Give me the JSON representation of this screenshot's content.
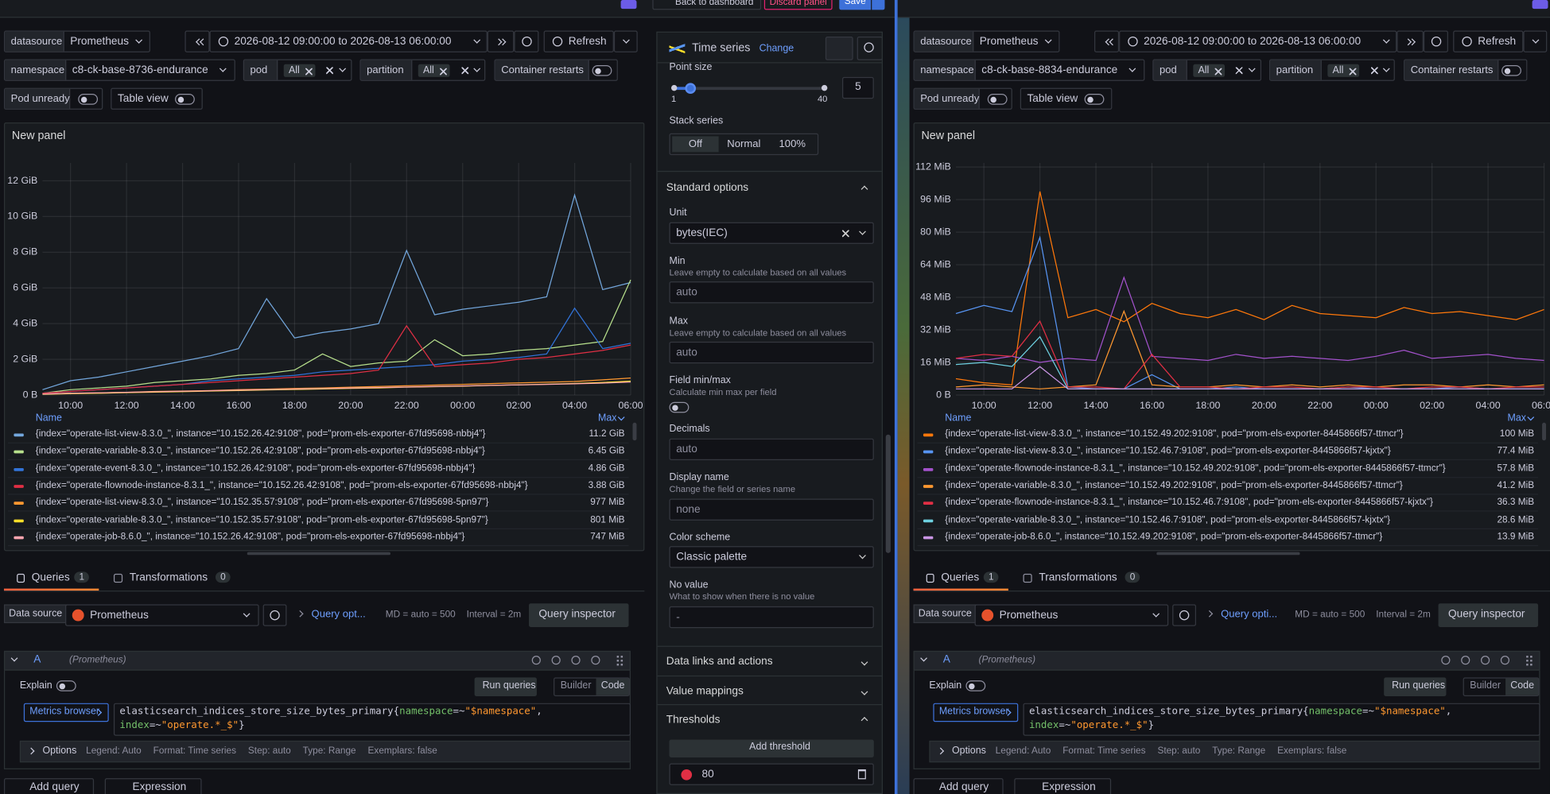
{
  "toolbar": {
    "back": "Back to dashboard",
    "discard": "Discard panel",
    "save": "Save"
  },
  "options_pane": {
    "viz": "Time series",
    "change": "Change",
    "point_size": "Point size",
    "point_size_min": 1,
    "point_size_max": 40,
    "point_size_value": 5,
    "stack_series": "Stack series",
    "stack_modes": [
      "Off",
      "Normal",
      "100%"
    ],
    "standard_options": "Standard options",
    "unit_label": "Unit",
    "unit": "bytes(IEC)",
    "min_label": "Min",
    "min_desc": "Leave empty to calculate based on all values",
    "min_placeholder": "auto",
    "max_label": "Max",
    "max_desc": "Leave empty to calculate based on all values",
    "max_placeholder": "auto",
    "field_minmax": "Field min/max",
    "field_minmax_desc": "Calculate min max per field",
    "decimals": "Decimals",
    "decimals_placeholder": "auto",
    "display_name": "Display name",
    "display_name_desc": "Change the field or series name",
    "display_name_placeholder": "none",
    "color_scheme": "Color scheme",
    "color_scheme_value": "Classic palette",
    "no_value": "No value",
    "no_value_desc": "What to show when there is no value",
    "no_value_placeholder": "-",
    "data_links": "Data links and actions",
    "value_mappings": "Value mappings",
    "thresholds": "Thresholds",
    "add_threshold": "Add threshold",
    "threshold_value": 80
  },
  "left": {
    "datasource_label": "datasource",
    "datasource": "Prometheus",
    "time_range": "2026-08-12 09:00:00 to 2026-08-13 06:00:00",
    "refresh": "Refresh",
    "namespace_label": "namespace",
    "namespace": "c8-ck-base-8736-endurance",
    "pod_label": "pod",
    "pod": "All",
    "partition_label": "partition",
    "partition": "All",
    "container_restarts": "Container restarts",
    "pod_unready": "Pod unready",
    "table_view": "Table view",
    "panel_title": "New panel",
    "chart": {
      "type": "line",
      "xlim": [
        "2026-08-12 09:00",
        "2026-08-13 06:00"
      ],
      "xticks": [
        {
          "value": "2026-08-12 10:00",
          "label": "10:00"
        },
        {
          "value": "2026-08-12 12:00",
          "label": "12:00"
        },
        {
          "value": "2026-08-12 14:00",
          "label": "14:00"
        },
        {
          "value": "2026-08-12 16:00",
          "label": "16:00"
        },
        {
          "value": "2026-08-12 18:00",
          "label": "18:00"
        },
        {
          "value": "2026-08-12 20:00",
          "label": "20:00"
        },
        {
          "value": "2026-08-12 22:00",
          "label": "22:00"
        },
        {
          "value": "2026-08-13 00:00",
          "label": "00:00"
        },
        {
          "value": "2026-08-13 02:00",
          "label": "02:00"
        },
        {
          "value": "2026-08-13 04:00",
          "label": "04:00"
        },
        {
          "value": "2026-08-13 06:00",
          "label": "06:00"
        }
      ],
      "ylim": [
        0,
        13
      ],
      "yticks": [
        {
          "value": 0,
          "label": "0 B"
        },
        {
          "value": 2,
          "label": "2 GiB"
        },
        {
          "value": 4,
          "label": "4 GiB"
        },
        {
          "value": 6,
          "label": "6 GiB"
        },
        {
          "value": 8,
          "label": "8 GiB"
        },
        {
          "value": 10,
          "label": "10 GiB"
        },
        {
          "value": 12,
          "label": "12 GiB"
        }
      ],
      "grid": true,
      "x": [
        "2026-08-12 09:00",
        "2026-08-12 10:00",
        "2026-08-12 11:00",
        "2026-08-12 12:00",
        "2026-08-12 13:00",
        "2026-08-12 14:00",
        "2026-08-12 15:00",
        "2026-08-12 16:00",
        "2026-08-12 17:00",
        "2026-08-12 18:00",
        "2026-08-12 19:00",
        "2026-08-12 20:00",
        "2026-08-12 21:00",
        "2026-08-12 22:00",
        "2026-08-12 23:00",
        "2026-08-13 00:00",
        "2026-08-13 01:00",
        "2026-08-13 02:00",
        "2026-08-13 03:00",
        "2026-08-13 04:00",
        "2026-08-13 05:00",
        "2026-08-13 06:00"
      ],
      "legend_name": "Name",
      "legend_max": "Max",
      "series": [
        {
          "name": "{index=\"operate-list-view-8.3.0_\", instance=\"10.152.26.42:9108\", pod=\"prom-els-exporter-67fd95698-nbbj4\"}",
          "max": "11.2 GiB",
          "color": "#73a7dd",
          "values": [
            0.3,
            0.8,
            1.0,
            1.3,
            1.6,
            1.9,
            2.2,
            2.6,
            5.4,
            3.2,
            3.5,
            3.7,
            4.0,
            8.1,
            4.5,
            4.8,
            5.0,
            5.2,
            5.5,
            11.2,
            5.9,
            6.3
          ]
        },
        {
          "name": "{index=\"operate-variable-8.3.0_\", instance=\"10.152.26.42:9108\", pod=\"prom-els-exporter-67fd95698-nbbj4\"}",
          "max": "6.45 GiB",
          "color": "#b7e08c",
          "values": [
            0.1,
            0.3,
            0.4,
            0.5,
            0.7,
            0.8,
            0.9,
            1.1,
            1.2,
            1.4,
            2.3,
            1.6,
            1.8,
            1.9,
            3.1,
            2.2,
            2.3,
            2.5,
            2.6,
            2.8,
            3.0,
            6.45
          ]
        },
        {
          "name": "{index=\"operate-event-8.3.0_\", instance=\"10.152.26.42:9108\", pod=\"prom-els-exporter-67fd95698-nbbj4\"}",
          "max": "4.86 GiB",
          "color": "#3274d9",
          "values": [
            0.1,
            0.2,
            0.3,
            0.4,
            0.5,
            0.6,
            0.8,
            0.9,
            1.0,
            1.1,
            1.3,
            1.4,
            1.5,
            1.6,
            1.7,
            1.9,
            2.0,
            2.1,
            2.3,
            4.86,
            2.6,
            2.9
          ]
        },
        {
          "name": "{index=\"operate-flownode-instance-8.3.1_\", instance=\"10.152.26.42:9108\", pod=\"prom-els-exporter-67fd95698-nbbj4\"}",
          "max": "3.88 GiB",
          "color": "#e02f44",
          "values": [
            0.1,
            0.2,
            0.3,
            0.4,
            0.5,
            0.6,
            0.7,
            0.8,
            0.9,
            1.0,
            1.1,
            1.2,
            1.4,
            3.88,
            1.6,
            1.7,
            1.8,
            2.0,
            2.1,
            2.3,
            2.5,
            2.8
          ]
        },
        {
          "name": "{index=\"operate-list-view-8.3.0_\", instance=\"10.152.35.57:9108\", pod=\"prom-els-exporter-67fd95698-5pn97\"}",
          "max": "977 MiB",
          "color": "#ff9830",
          "values": [
            0.05,
            0.1,
            0.12,
            0.15,
            0.2,
            0.22,
            0.25,
            0.3,
            0.33,
            0.37,
            0.4,
            0.44,
            0.48,
            0.52,
            0.56,
            0.6,
            0.64,
            0.68,
            0.72,
            0.76,
            0.85,
            0.95
          ]
        },
        {
          "name": "{index=\"operate-variable-8.3.0_\", instance=\"10.152.35.57:9108\", pod=\"prom-els-exporter-67fd95698-5pn97\"}",
          "max": "801 MiB",
          "color": "#fade2a",
          "values": [
            0.04,
            0.08,
            0.1,
            0.13,
            0.16,
            0.19,
            0.22,
            0.25,
            0.28,
            0.31,
            0.34,
            0.37,
            0.4,
            0.44,
            0.47,
            0.5,
            0.54,
            0.57,
            0.61,
            0.65,
            0.7,
            0.78
          ]
        },
        {
          "name": "{index=\"operate-job-8.6.0_\", instance=\"10.152.26.42:9108\", pod=\"prom-els-exporter-67fd95698-nbbj4\"}",
          "max": "747 MiB",
          "color": "#ffa6b0",
          "values": [
            0.05,
            0.1,
            0.12,
            0.15,
            0.18,
            0.21,
            0.24,
            0.27,
            0.3,
            0.33,
            0.36,
            0.39,
            0.42,
            0.45,
            0.48,
            0.51,
            0.54,
            0.57,
            0.6,
            0.63,
            0.67,
            0.73
          ]
        }
      ]
    },
    "queries_tab": "Queries",
    "queries_count": 1,
    "transformations_tab": "Transformations",
    "transformations_count": 0,
    "data_source_label": "Data source",
    "data_source": "Prometheus",
    "query_options": "Query opt...",
    "md": "MD = auto = 500",
    "interval": "Interval = 2m",
    "query_inspector": "Query inspector",
    "query_ref": "A",
    "query_ds": "(Prometheus)",
    "explain": "Explain",
    "run_queries": "Run queries",
    "builder": "Builder",
    "code": "Code",
    "metrics_browser": "Metrics browser",
    "query_line1": [
      "elasticsearch_indices_store_size_bytes_primary{",
      "namespace",
      "=~",
      "\"$namespace\"",
      ","
    ],
    "query_line2": [
      "index",
      "=~",
      "\"operate.*_$\"",
      "}"
    ],
    "options": "Options",
    "options_summary": [
      "Legend: Auto",
      "Format: Time series",
      "Step: auto",
      "Type: Range",
      "Exemplars: false"
    ],
    "add_query": "Add query",
    "expression": "Expression"
  },
  "right": {
    "datasource_label": "datasource",
    "datasource": "Prometheus",
    "time_range": "2026-08-12 09:00:00 to 2026-08-13 06:00:00",
    "refresh": "Refresh",
    "namespace_label": "namespace",
    "namespace": "c8-ck-base-8834-endurance",
    "pod_label": "pod",
    "pod": "All",
    "partition_label": "partition",
    "partition": "All",
    "container_restarts": "Container restarts",
    "pod_unready": "Pod unready",
    "table_view": "Table view",
    "panel_title": "New panel",
    "chart": {
      "type": "line",
      "xlim": [
        "2026-08-12 09:00",
        "2026-08-13 06:00"
      ],
      "xticks": [
        {
          "value": "2026-08-12 10:00",
          "label": "10:00"
        },
        {
          "value": "2026-08-12 12:00",
          "label": "12:00"
        },
        {
          "value": "2026-08-12 14:00",
          "label": "14:00"
        },
        {
          "value": "2026-08-12 16:00",
          "label": "16:00"
        },
        {
          "value": "2026-08-12 18:00",
          "label": "18:00"
        },
        {
          "value": "2026-08-12 20:00",
          "label": "20:00"
        },
        {
          "value": "2026-08-12 22:00",
          "label": "22:00"
        },
        {
          "value": "2026-08-13 00:00",
          "label": "00:00"
        },
        {
          "value": "2026-08-13 02:00",
          "label": "02:00"
        },
        {
          "value": "2026-08-13 04:00",
          "label": "04:00"
        },
        {
          "value": "2026-08-13 06:00",
          "label": "06:00"
        }
      ],
      "ylim": [
        0,
        114
      ],
      "yticks": [
        {
          "value": 0,
          "label": "0 B"
        },
        {
          "value": 16,
          "label": "16 MiB"
        },
        {
          "value": 32,
          "label": "32 MiB"
        },
        {
          "value": 48,
          "label": "48 MiB"
        },
        {
          "value": 64,
          "label": "64 MiB"
        },
        {
          "value": 80,
          "label": "80 MiB"
        },
        {
          "value": 96,
          "label": "96 MiB"
        },
        {
          "value": 112,
          "label": "112 MiB"
        }
      ],
      "grid": true,
      "x": [
        "2026-08-12 09:00",
        "2026-08-12 10:00",
        "2026-08-12 11:00",
        "2026-08-12 12:00",
        "2026-08-12 13:00",
        "2026-08-12 14:00",
        "2026-08-12 15:00",
        "2026-08-12 16:00",
        "2026-08-12 17:00",
        "2026-08-12 18:00",
        "2026-08-12 19:00",
        "2026-08-12 20:00",
        "2026-08-12 21:00",
        "2026-08-12 22:00",
        "2026-08-12 23:00",
        "2026-08-13 00:00",
        "2026-08-13 01:00",
        "2026-08-13 02:00",
        "2026-08-13 03:00",
        "2026-08-13 04:00",
        "2026-08-13 05:00",
        "2026-08-13 06:00"
      ],
      "legend_name": "Name",
      "legend_max": "Max",
      "series": [
        {
          "name": "{index=\"operate-list-view-8.3.0_\", instance=\"10.152.49.202:9108\", pod=\"prom-els-exporter-8445866f57-ttmcr\"}",
          "max": "100 MiB",
          "color": "#ff780a",
          "values": [
            8,
            6,
            5,
            100,
            38,
            42,
            36,
            45,
            40,
            38,
            42,
            37,
            44,
            40,
            39,
            38,
            43,
            40,
            41,
            39,
            37,
            42
          ]
        },
        {
          "name": "{index=\"operate-list-view-8.3.0_\", instance=\"10.152.46.7:9108\", pod=\"prom-els-exporter-8445866f57-kjxtx\"}",
          "max": "77.4 MiB",
          "color": "#5794f2",
          "values": [
            40,
            44,
            41,
            77.4,
            4,
            3,
            3,
            10,
            3,
            3,
            4,
            3,
            3,
            3,
            4,
            3,
            3,
            3,
            4,
            3,
            3,
            3
          ]
        },
        {
          "name": "{index=\"operate-flownode-instance-8.3.1_\", instance=\"10.152.49.202:9108\", pod=\"prom-els-exporter-8445866f57-ttmcr\"}",
          "max": "57.8 MiB",
          "color": "#a352cc",
          "values": [
            18,
            17,
            19,
            16,
            18,
            17,
            57.8,
            19,
            18,
            17,
            20,
            18,
            19,
            18,
            17,
            19,
            22,
            18,
            19,
            20,
            18,
            17
          ]
        },
        {
          "name": "{index=\"operate-variable-8.3.0_\", instance=\"10.152.49.202:9108\", pod=\"prom-els-exporter-8445866f57-ttmcr\"}",
          "max": "41.2 MiB",
          "color": "#ff9830",
          "values": [
            4,
            5,
            4,
            3,
            4,
            5,
            41.2,
            5,
            4,
            4,
            5,
            4,
            5,
            4,
            5,
            4,
            5,
            5,
            4,
            5,
            4,
            5
          ]
        },
        {
          "name": "{index=\"operate-flownode-instance-8.3.1_\", instance=\"10.152.46.7:9108\", pod=\"prom-els-exporter-8445866f57-kjxtx\"}",
          "max": "36.3 MiB",
          "color": "#e02f44",
          "values": [
            18,
            20,
            19,
            36.3,
            4,
            4,
            3,
            20,
            4,
            4,
            3,
            4,
            4,
            3,
            4,
            4,
            3,
            4,
            4,
            3,
            4,
            4
          ]
        },
        {
          "name": "{index=\"operate-variable-8.3.0_\", instance=\"10.152.46.7:9108\", pod=\"prom-els-exporter-8445866f57-kjxtx\"}",
          "max": "28.6 MiB",
          "color": "#6ed0e0",
          "values": [
            15,
            16,
            14,
            28.6,
            3,
            3,
            3,
            3,
            3,
            3,
            3,
            3,
            3,
            3,
            3,
            3,
            3,
            3,
            3,
            3,
            3,
            3
          ]
        },
        {
          "name": "{index=\"operate-job-8.6.0_\", instance=\"10.152.49.202:9108\", pod=\"prom-els-exporter-8445866f57-ttmcr\"}",
          "max": "13.9 MiB",
          "color": "#ca95e5",
          "values": [
            3,
            3,
            3,
            13.9,
            3,
            3,
            3,
            3,
            3,
            3,
            3,
            3,
            3,
            3,
            3,
            3,
            3,
            3,
            3,
            3,
            3,
            3
          ]
        }
      ]
    },
    "queries_tab": "Queries",
    "queries_count": 1,
    "transformations_tab": "Transformations",
    "transformations_count": 0,
    "data_source_label": "Data source",
    "data_source": "Prometheus",
    "query_options": "Query opti...",
    "md": "MD = auto = 500",
    "interval": "Interval = 2m",
    "query_inspector": "Query inspector",
    "query_ref": "A",
    "query_ds": "(Prometheus)",
    "explain": "Explain",
    "run_queries": "Run queries",
    "builder": "Builder",
    "code": "Code",
    "metrics_browser": "Metrics browser",
    "query_line1": [
      "elasticsearch_indices_store_size_bytes_primary{",
      "namespace",
      "=~",
      "\"$namespace\"",
      ","
    ],
    "query_line2": [
      "index",
      "=~",
      "\"operate.*_$\"",
      "}"
    ],
    "options": "Options",
    "options_summary": [
      "Legend: Auto",
      "Format: Time series",
      "Step: auto",
      "Type: Range",
      "Exemplars: false"
    ],
    "add_query": "Add query",
    "expression": "Expression"
  }
}
